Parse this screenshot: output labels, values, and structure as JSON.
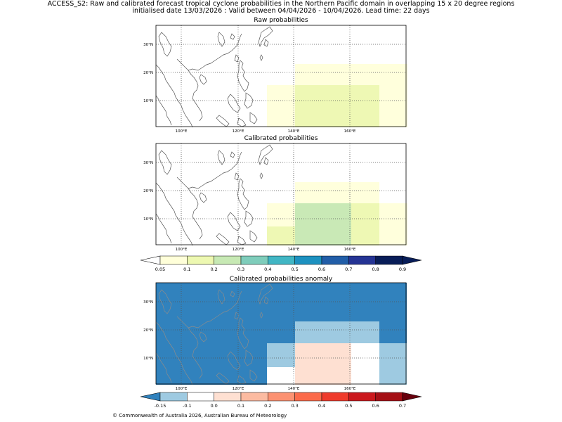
{
  "title_line1": "ACCESS_S2: Raw and calibrated forecast tropical cyclone probabilities in the Northern Pacific domain in overlapping 15 x 20 degree regions",
  "title_line2": "initialised date 13/03/2026 :  Valid between 04/04/2026 - 10/04/2026. Lead time: 22 days",
  "panels": [
    {
      "title": "Raw probabilities"
    },
    {
      "title": "Calibrated probabilities"
    },
    {
      "title": "Calibrated probabilities anomaly"
    }
  ],
  "lon_ticks": [
    "100°E",
    "120°E",
    "140°E",
    "160°E"
  ],
  "lat_ticks": [
    "30°N",
    "20°N",
    "10°N"
  ],
  "prob_colorbar": {
    "ticks": [
      "0.05",
      "0.1",
      "0.2",
      "0.3",
      "0.4",
      "0.5",
      "0.6",
      "0.7",
      "0.8",
      "0.9"
    ],
    "colors": [
      "#ffffd9",
      "#edf8b1",
      "#c7e9b4",
      "#7fcdbb",
      "#41b6c4",
      "#1d91c0",
      "#225ea8",
      "#253494",
      "#081d58"
    ],
    "under_color": "#ffffff",
    "over_color": "#081d58"
  },
  "anom_colorbar": {
    "ticks": [
      "-0.15",
      "-0.1",
      "0.0",
      "0.1",
      "0.2",
      "0.3",
      "0.4",
      "0.5",
      "0.6",
      "0.7"
    ],
    "colors": [
      "#9ecae1",
      "#ffffff",
      "#fee0d2",
      "#fcbba1",
      "#fc9272",
      "#fb6a4a",
      "#ef3b2c",
      "#cb181d",
      "#a50f15"
    ],
    "under_color": "#3182bd",
    "over_color": "#67000d"
  },
  "map_colors": {
    "prob_005": "#ffffdc",
    "prob_01": "#eef8b4",
    "prob_02": "#c9e9b6",
    "anom_base": "#3182bd",
    "anom_light_blue": "#9ecae1",
    "anom_white": "#ffffff",
    "anom_pink": "#fee0d2"
  },
  "copyright": "© Commonwealth of Australia 2026, Australian Bureau of Meteorology"
}
